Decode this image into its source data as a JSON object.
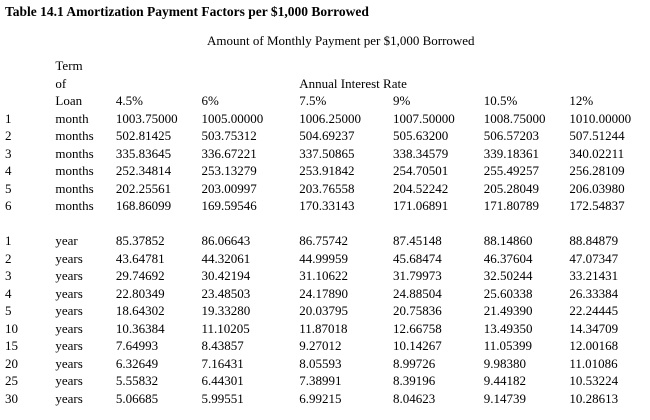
{
  "title": "Table 14.1 Amortization Payment Factors per $1,000 Borrowed",
  "subtitle": "Amount of Monthly Payment per $1,000 Borrowed",
  "table": {
    "term_header_lines": [
      "Term",
      "of",
      "Loan"
    ],
    "interest_rate_group_header": "Annual Interest Rate",
    "rate_columns": [
      "4.5%",
      "6%",
      "7.5%",
      "9%",
      "10.5%",
      "12%"
    ],
    "month_rows": [
      {
        "num": "1",
        "unit": "month",
        "values": [
          "1003.75000",
          "1005.00000",
          "1006.25000",
          "1007.50000",
          "1008.75000",
          "1010.00000"
        ]
      },
      {
        "num": "2",
        "unit": "months",
        "values": [
          "502.81425",
          "503.75312",
          "504.69237",
          "505.63200",
          "506.57203",
          "507.51244"
        ]
      },
      {
        "num": "3",
        "unit": "months",
        "values": [
          "335.83645",
          "336.67221",
          "337.50865",
          "338.34579",
          "339.18361",
          "340.02211"
        ]
      },
      {
        "num": "4",
        "unit": "months",
        "values": [
          "252.34814",
          "253.13279",
          "253.91842",
          "254.70501",
          "255.49257",
          "256.28109"
        ]
      },
      {
        "num": "5",
        "unit": "months",
        "values": [
          "202.25561",
          "203.00997",
          "203.76558",
          "204.52242",
          "205.28049",
          "206.03980"
        ]
      },
      {
        "num": "6",
        "unit": "months",
        "values": [
          "168.86099",
          "169.59546",
          "170.33143",
          "171.06891",
          "171.80789",
          "172.54837"
        ]
      }
    ],
    "year_rows": [
      {
        "num": "1",
        "unit": "year",
        "values": [
          "85.37852",
          "86.06643",
          "86.75742",
          "87.45148",
          "88.14860",
          "88.84879"
        ]
      },
      {
        "num": "2",
        "unit": "years",
        "values": [
          "43.64781",
          "44.32061",
          "44.99959",
          "45.68474",
          "46.37604",
          "47.07347"
        ]
      },
      {
        "num": "3",
        "unit": "years",
        "values": [
          "29.74692",
          "30.42194",
          "31.10622",
          "31.79973",
          "32.50244",
          "33.21431"
        ]
      },
      {
        "num": "4",
        "unit": "years",
        "values": [
          "22.80349",
          "23.48503",
          "24.17890",
          "24.88504",
          "25.60338",
          "26.33384"
        ]
      },
      {
        "num": "5",
        "unit": "years",
        "values": [
          "18.64302",
          "19.33280",
          "20.03795",
          "20.75836",
          "21.49390",
          "22.24445"
        ]
      },
      {
        "num": "10",
        "unit": "years",
        "values": [
          "10.36384",
          "11.10205",
          "11.87018",
          "12.66758",
          "13.49350",
          "14.34709"
        ]
      },
      {
        "num": "15",
        "unit": "years",
        "values": [
          "7.64993",
          "8.43857",
          "9.27012",
          "10.14267",
          "11.05399",
          "12.00168"
        ]
      },
      {
        "num": "20",
        "unit": "years",
        "values": [
          "6.32649",
          "7.16431",
          "8.05593",
          "8.99726",
          "9.98380",
          "11.01086"
        ]
      },
      {
        "num": "25",
        "unit": "years",
        "values": [
          "5.55832",
          "6.44301",
          "7.38991",
          "8.39196",
          "9.44182",
          "10.53224"
        ]
      },
      {
        "num": "30",
        "unit": "years",
        "values": [
          "5.06685",
          "5.99551",
          "6.99215",
          "8.04623",
          "9.14739",
          "10.28613"
        ]
      }
    ]
  },
  "colors": {
    "background": "#ffffff",
    "text": "#000000"
  }
}
